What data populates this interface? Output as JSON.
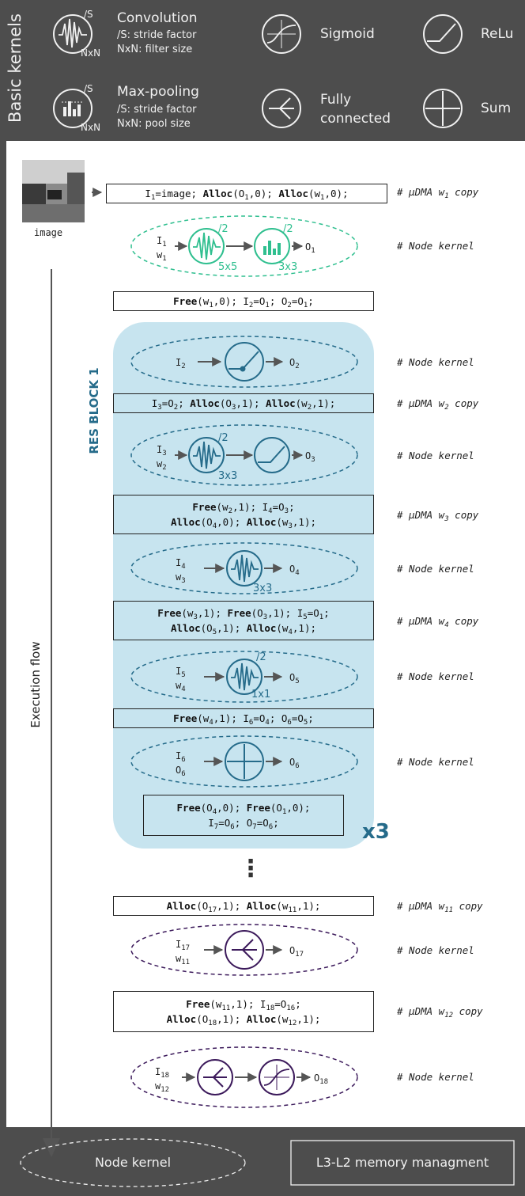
{
  "legend": {
    "title": "Basic kernels",
    "convolution": {
      "name": "Convolution",
      "line1": "/S: stride factor",
      "line2": "NxN: filter size",
      "stride": "/S",
      "size": "NxN"
    },
    "maxpool": {
      "name": "Max-pooling",
      "line1": "/S: stride factor",
      "line2": "NxN: pool size",
      "stride": "/S",
      "size": "NxN"
    },
    "sigmoid": "Sigmoid",
    "relu": "ReLu",
    "fc": {
      "line1": "Fully",
      "line2": "connected"
    },
    "sum": "Sum"
  },
  "image_caption": "image",
  "exec_flow_label": "Execution flow",
  "resblock_label": "RES BLOCK 1",
  "repeat_label": "x3",
  "ellipsis": "⋮",
  "footer": {
    "node_kernel": "Node kernel",
    "memory": "L3-L2 memory managment"
  },
  "comments": {
    "copy_w1": "# µDMA w",
    "copy_w1_sub": "1",
    "copy": " copy",
    "node": "# Node kernel",
    "copy_w2_sub": "2",
    "copy_w3_sub": "3",
    "copy_w4_sub": "4",
    "copy_w11_sub": "11",
    "copy_w12_sub": "12"
  },
  "kernel_sizes": {
    "k1_conv": "5x5",
    "k1_pool": "3x3",
    "k3_conv": "3x3",
    "k4_conv": "3x3",
    "k5_conv": "1x1",
    "stride2": "/2"
  },
  "colors": {
    "band": "#4d4d4d",
    "green": "#2fbf8f",
    "teal": "#256b8a",
    "purple": "#3c1a5b",
    "resblock": "#c7e4ef"
  }
}
